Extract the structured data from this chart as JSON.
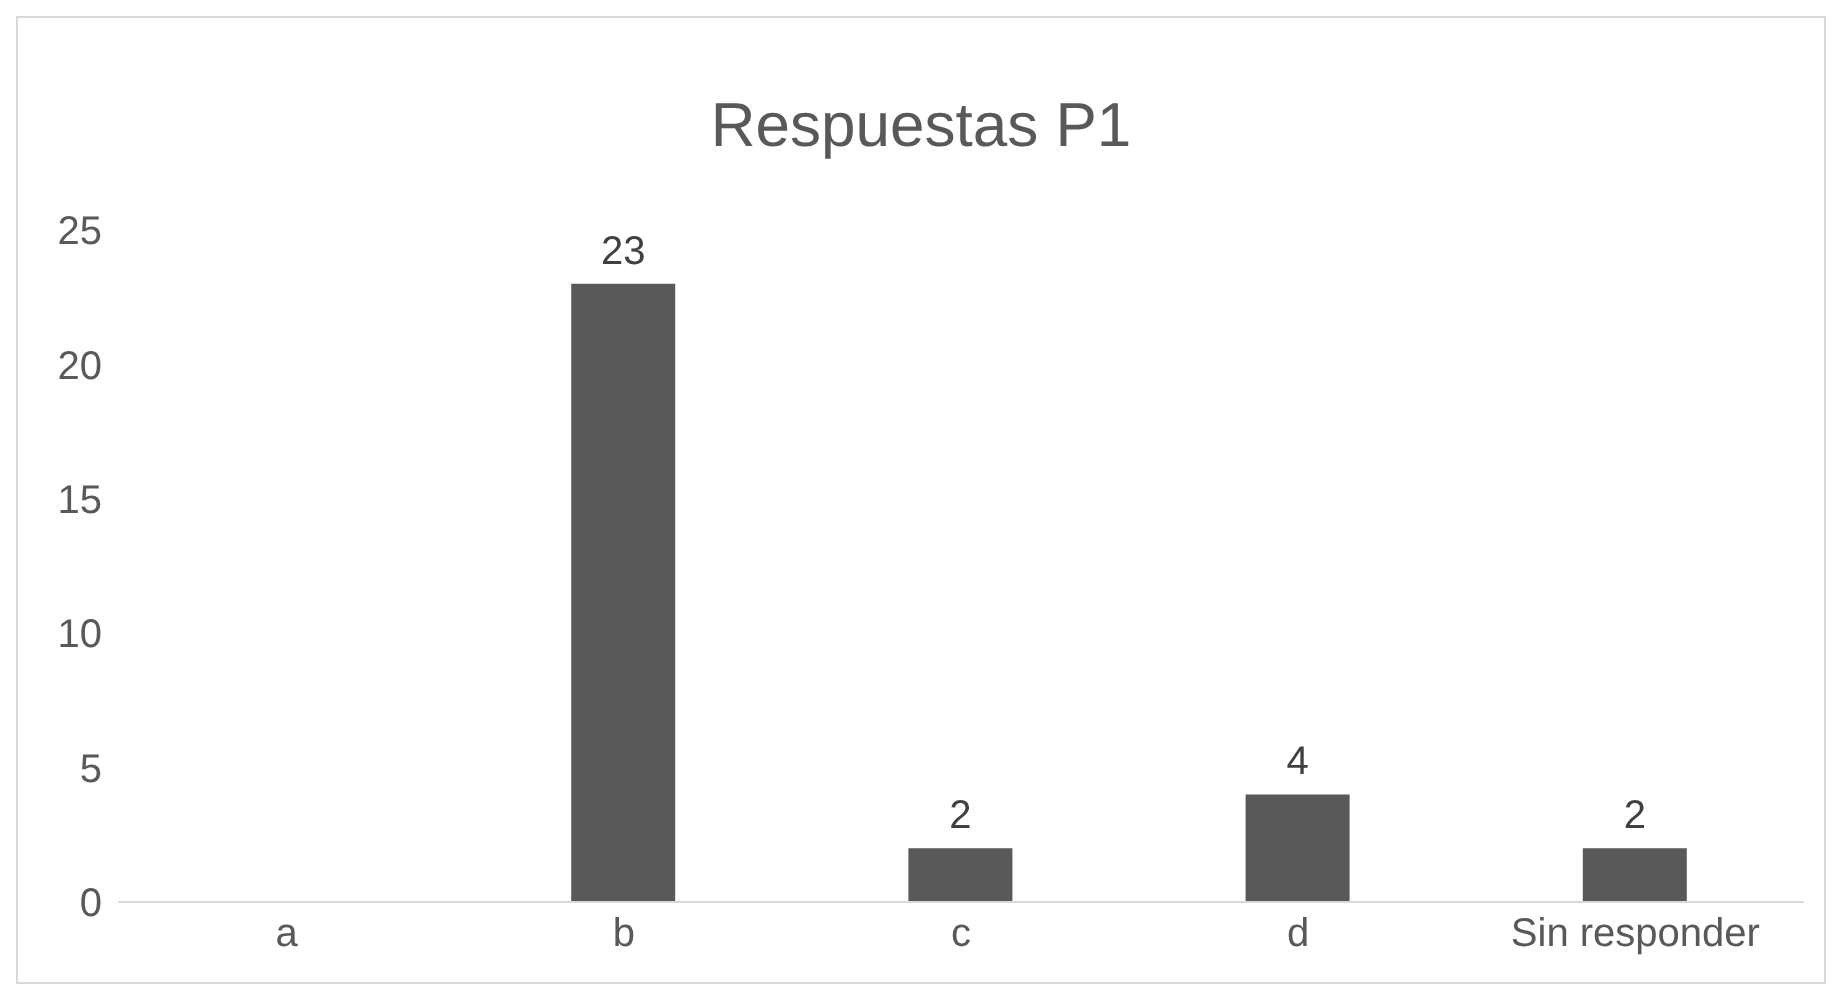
{
  "chart_data": {
    "type": "bar",
    "title": "Respuestas P1",
    "categories": [
      "a",
      "b",
      "c",
      "d",
      "Sin responder"
    ],
    "values": [
      null,
      23,
      2,
      4,
      2
    ],
    "color": "#595959",
    "ylim": [
      0,
      25
    ],
    "yticks": [
      0,
      5,
      10,
      15,
      20,
      25
    ],
    "grid": false,
    "data_labels": true
  }
}
